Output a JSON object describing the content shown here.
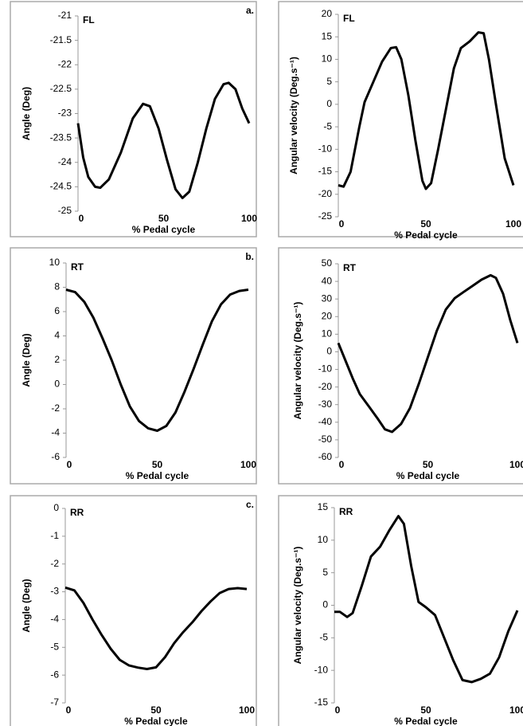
{
  "chart_data": [
    {
      "type": "line",
      "panel_label": "FL",
      "panel_letter": "a.",
      "y_label": "Angle (Deg)",
      "x_label": "% Pedal cycle",
      "color": "#000000",
      "xlim": [
        0,
        100
      ],
      "xticks": [
        0,
        50,
        100
      ],
      "ylim": [
        -25,
        -21
      ],
      "yticks": [
        -25,
        -24.5,
        -24,
        -23.5,
        -23,
        -22.5,
        -22,
        -21.5,
        -21
      ],
      "x": [
        0,
        3,
        6,
        10,
        13,
        18,
        25,
        32,
        38,
        42,
        47,
        52,
        57,
        61,
        65,
        70,
        75,
        80,
        85,
        88,
        92,
        96,
        100
      ],
      "values": [
        -23.2,
        -23.9,
        -24.3,
        -24.5,
        -24.52,
        -24.35,
        -23.8,
        -23.1,
        -22.8,
        -22.85,
        -23.3,
        -23.95,
        -24.55,
        -24.73,
        -24.6,
        -24.0,
        -23.3,
        -22.7,
        -22.4,
        -22.37,
        -22.5,
        -22.9,
        -23.2
      ]
    },
    {
      "type": "line",
      "panel_label": "FL",
      "panel_letter": "a.",
      "y_label": "Angular velocity (Deg.s⁻¹)",
      "x_label": "% Pedal cycle",
      "color": "#000000",
      "xlim": [
        0,
        100
      ],
      "xticks": [
        0,
        50,
        100
      ],
      "ylim": [
        -25,
        20
      ],
      "yticks": [
        -25,
        -20,
        -15,
        -10,
        -5,
        0,
        5,
        10,
        15,
        20
      ],
      "x": [
        0,
        3,
        7,
        12,
        15,
        20,
        25,
        30,
        33,
        36,
        40,
        44,
        48,
        50,
        53,
        57,
        62,
        66,
        70,
        75,
        80,
        83,
        86,
        90,
        95,
        100
      ],
      "values": [
        -18,
        -18.3,
        -15,
        -5,
        0.5,
        5,
        9.5,
        12.5,
        12.7,
        10,
        2,
        -8,
        -17,
        -18.8,
        -17.5,
        -10,
        0,
        8,
        12.5,
        14,
        16,
        15.8,
        10,
        0,
        -12,
        -18
      ]
    },
    {
      "type": "line",
      "panel_label": "RT",
      "panel_letter": "b.",
      "y_label": "Angle (Deg)",
      "x_label": "% Pedal cycle",
      "color": "#000000",
      "xlim": [
        0,
        100
      ],
      "xticks": [
        0,
        50,
        100
      ],
      "ylim": [
        -6,
        10
      ],
      "yticks": [
        -6,
        -4,
        -2,
        0,
        2,
        4,
        6,
        8,
        10
      ],
      "x": [
        0,
        5,
        10,
        15,
        20,
        25,
        30,
        35,
        40,
        45,
        50,
        55,
        60,
        65,
        70,
        75,
        80,
        85,
        90,
        95,
        100
      ],
      "values": [
        7.8,
        7.6,
        6.8,
        5.5,
        3.8,
        2,
        0,
        -1.8,
        -3,
        -3.6,
        -3.8,
        -3.4,
        -2.3,
        -0.6,
        1.3,
        3.3,
        5.2,
        6.6,
        7.4,
        7.7,
        7.8
      ]
    },
    {
      "type": "line",
      "panel_label": "RT",
      "panel_letter": "b.",
      "y_label": "Angular velocity (Deg.s⁻¹)",
      "x_label": "% Pedal cycle",
      "color": "#000000",
      "xlim": [
        0,
        100
      ],
      "xticks": [
        0,
        50,
        100
      ],
      "ylim": [
        -60,
        50
      ],
      "yticks": [
        -60,
        -50,
        -40,
        -30,
        -20,
        -10,
        0,
        10,
        20,
        30,
        40,
        50
      ],
      "x": [
        0,
        4,
        8,
        12,
        17,
        22,
        26,
        30,
        35,
        40,
        45,
        50,
        55,
        60,
        65,
        70,
        75,
        80,
        85,
        88,
        92,
        96,
        100
      ],
      "values": [
        5,
        -5,
        -15,
        -24,
        -31,
        -38,
        -44,
        -45.5,
        -41,
        -32,
        -18,
        -3,
        12,
        24,
        30.5,
        34,
        37.5,
        41,
        43.5,
        42,
        33,
        18,
        5
      ]
    },
    {
      "type": "line",
      "panel_label": "RR",
      "panel_letter": "c.",
      "y_label": "Angle (Deg)",
      "x_label": "% Pedal cycle",
      "color": "#000000",
      "xlim": [
        0,
        100
      ],
      "xticks": [
        0,
        50,
        100
      ],
      "ylim": [
        -7,
        0
      ],
      "yticks": [
        -7,
        -6,
        -5,
        -4,
        -3,
        -2,
        -1,
        0
      ],
      "x": [
        0,
        5,
        10,
        15,
        20,
        25,
        30,
        35,
        40,
        45,
        50,
        55,
        60,
        65,
        70,
        75,
        80,
        85,
        90,
        95,
        100
      ],
      "values": [
        -2.85,
        -2.95,
        -3.4,
        -4,
        -4.55,
        -5.05,
        -5.45,
        -5.65,
        -5.73,
        -5.78,
        -5.72,
        -5.35,
        -4.85,
        -4.45,
        -4.1,
        -3.7,
        -3.35,
        -3.05,
        -2.9,
        -2.87,
        -2.9
      ]
    },
    {
      "type": "line",
      "panel_label": "RR",
      "panel_letter": "c.",
      "y_label": "Angular velocity (Deg.s⁻¹)",
      "x_label": "% Pedal cycle",
      "color": "#000000",
      "xlim": [
        0,
        100
      ],
      "xticks": [
        0,
        50,
        100
      ],
      "ylim": [
        -15,
        15
      ],
      "yticks": [
        -15,
        -10,
        -5,
        0,
        5,
        10,
        15
      ],
      "x": [
        0,
        3,
        7,
        10,
        15,
        20,
        25,
        30,
        35,
        38,
        42,
        46,
        50,
        55,
        60,
        65,
        70,
        75,
        80,
        85,
        90,
        95,
        100
      ],
      "values": [
        -1,
        -1,
        -1.8,
        -1.2,
        3,
        7.5,
        9,
        11.5,
        13.7,
        12.5,
        6,
        0.5,
        -0.3,
        -1.5,
        -5,
        -8.5,
        -11.5,
        -11.8,
        -11.3,
        -10.5,
        -8,
        -4,
        -0.8
      ]
    }
  ]
}
